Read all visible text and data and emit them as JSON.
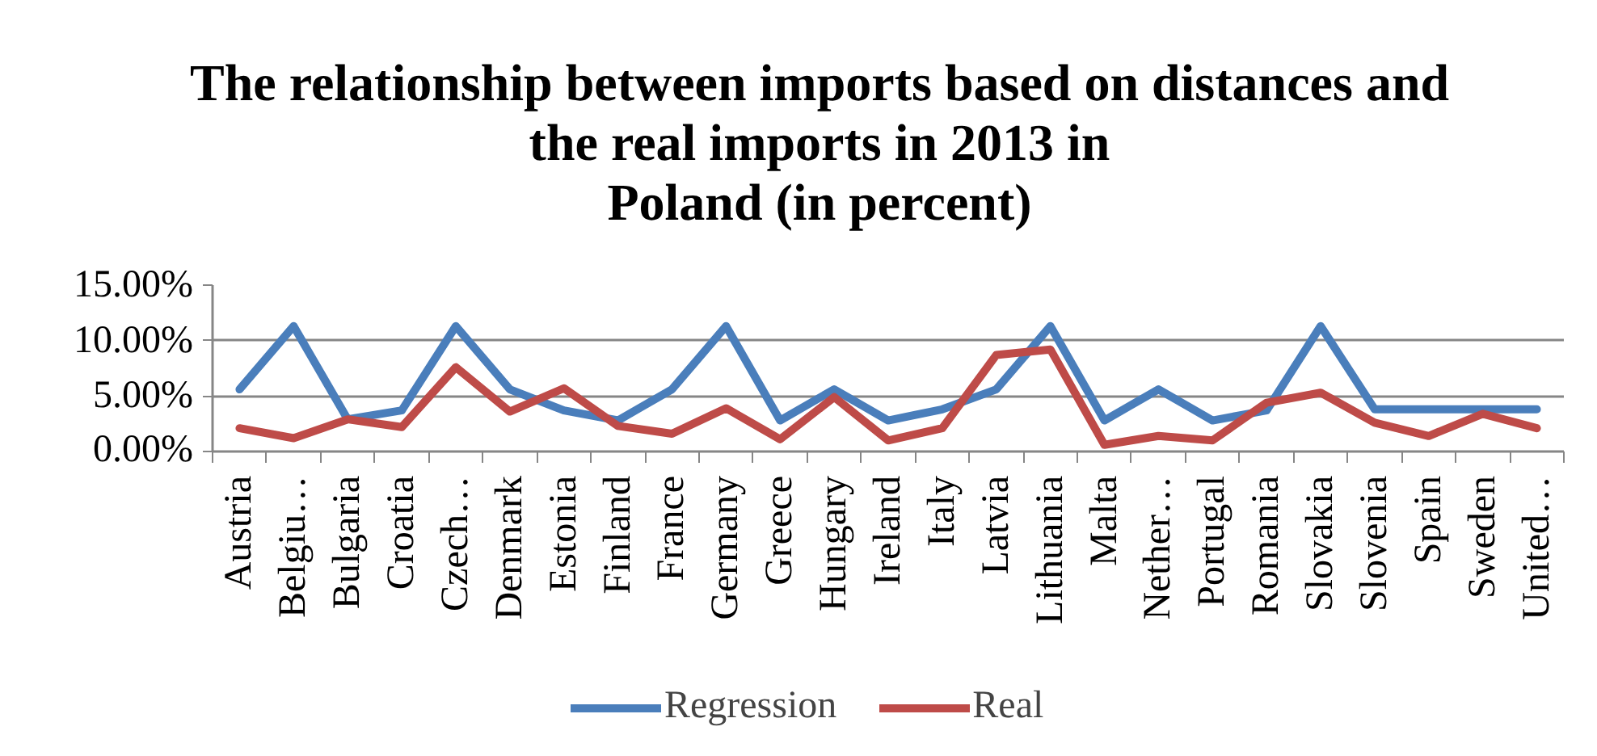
{
  "chart_data": {
    "type": "line",
    "title": "The relationship between imports based on distances and\nthe real imports in 2013 in\nPoland (in percent)",
    "categories": [
      "Austria",
      "Belgiu…",
      "Bulgaria",
      "Croatia",
      "Czech…",
      "Denmark",
      "Estonia",
      "Finland",
      "France",
      "Germany",
      "Greece",
      "Hungary",
      "Ireland",
      "Italy",
      "Latvia",
      "Lithuania",
      "Malta",
      "Nether…",
      "Portugal",
      "Romania",
      "Slovakia",
      "Slovenia",
      "Spain",
      "Sweden",
      "United…"
    ],
    "series": [
      {
        "name": "Regression",
        "color": "#4a7ebb",
        "values": [
          5.6,
          11.3,
          2.9,
          3.7,
          11.3,
          5.6,
          3.7,
          2.8,
          5.6,
          11.3,
          2.8,
          5.6,
          2.8,
          3.8,
          5.6,
          11.3,
          2.8,
          5.6,
          2.8,
          3.7,
          11.3,
          3.8,
          3.8,
          3.8,
          3.8
        ]
      },
      {
        "name": "Real",
        "color": "#be4b48",
        "values": [
          2.1,
          1.2,
          2.9,
          2.2,
          7.6,
          3.6,
          5.7,
          2.3,
          1.6,
          3.9,
          1.1,
          4.9,
          1.0,
          2.1,
          8.7,
          9.2,
          0.6,
          1.4,
          1.0,
          4.4,
          5.3,
          2.6,
          1.4,
          3.4,
          2.1
        ]
      }
    ],
    "ylim": [
      0,
      15
    ],
    "yticks": [
      {
        "value": 0,
        "label": "0.00%"
      },
      {
        "value": 5,
        "label": "5.00%"
      },
      {
        "value": 10,
        "label": "10.00%"
      },
      {
        "value": 15,
        "label": "15.00%"
      }
    ],
    "grid": "y",
    "legend": "bottom"
  }
}
